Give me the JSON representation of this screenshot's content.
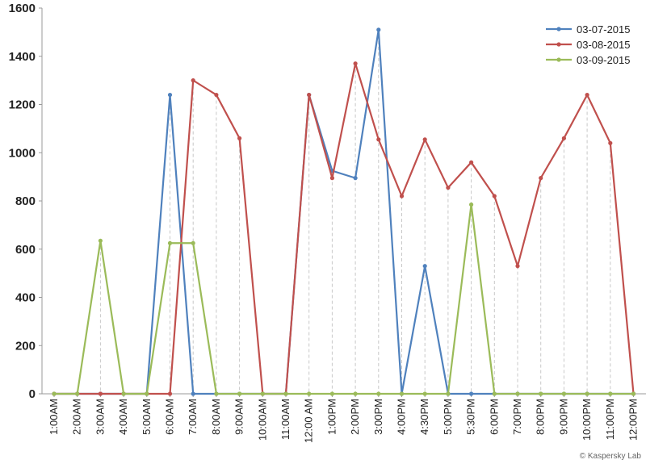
{
  "chart_data": {
    "type": "line",
    "categories": [
      "1:00AM",
      "2:00AM",
      "3:00AM",
      "4:00AM",
      "5:00AM",
      "6:00AM",
      "7:00AM",
      "8:00AM",
      "9:00AM",
      "10:00AM",
      "11:00AM",
      "12:00 AM",
      "1:00PM",
      "2:00PM",
      "3:00PM",
      "4:00PM",
      "4:30PM",
      "5:00PM",
      "5:30PM",
      "6:00PM",
      "7:00PM",
      "8:00PM",
      "9:00PM",
      "10:00PM",
      "11:00PM",
      "12:00PM"
    ],
    "series": [
      {
        "name": "03-07-2015",
        "color": "#4f81bd",
        "values": [
          0,
          0,
          0,
          0,
          0,
          1240,
          0,
          0,
          0,
          0,
          0,
          1240,
          925,
          895,
          1510,
          0,
          530,
          0,
          0,
          0,
          0,
          0,
          0,
          0,
          0,
          0
        ]
      },
      {
        "name": "03-08-2015",
        "color": "#c0504d",
        "values": [
          0,
          0,
          0,
          0,
          0,
          0,
          1300,
          1240,
          1060,
          0,
          0,
          1240,
          895,
          1370,
          1055,
          820,
          1055,
          855,
          960,
          820,
          530,
          895,
          1060,
          1240,
          1040,
          0
        ]
      },
      {
        "name": "03-09-2015",
        "color": "#9bbb59",
        "values": [
          0,
          0,
          635,
          0,
          0,
          625,
          625,
          0,
          0,
          0,
          0,
          0,
          0,
          0,
          0,
          0,
          0,
          0,
          785,
          0,
          0,
          0,
          0,
          0,
          0,
          0
        ]
      }
    ],
    "yticks": [
      "0",
      "200",
      "400",
      "600",
      "800",
      "1000",
      "1200",
      "1400",
      "1600"
    ],
    "ylim": [
      0,
      1600
    ],
    "grid": "vertical dashed",
    "legend": "top-right"
  },
  "credit": "© Kaspersky Lab"
}
